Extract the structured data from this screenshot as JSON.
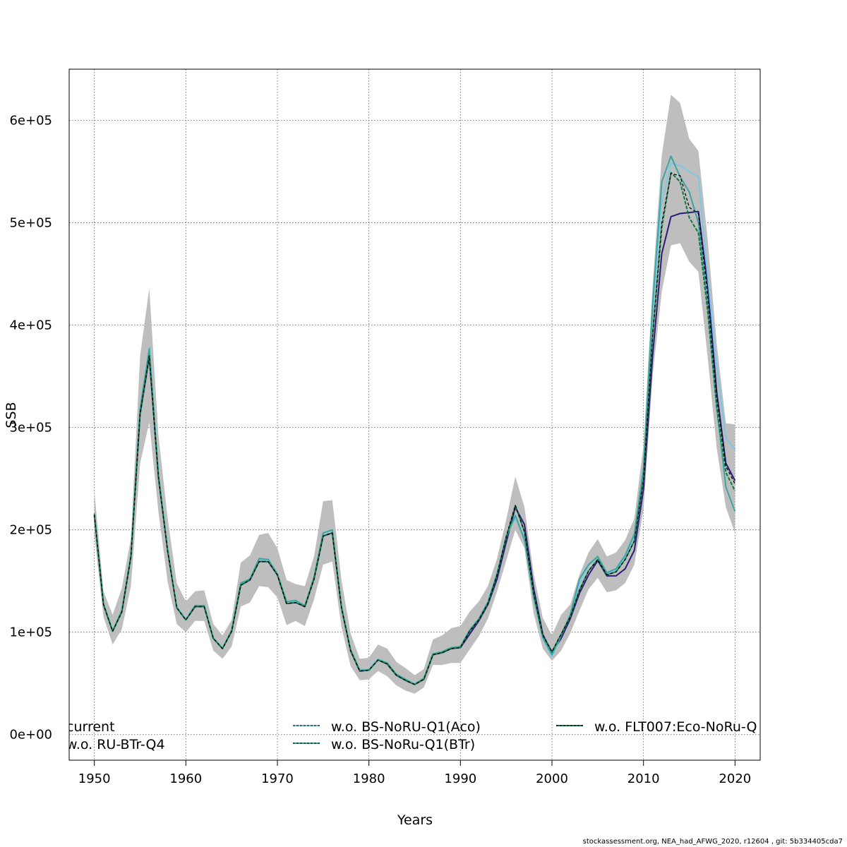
{
  "chart_data": {
    "type": "line",
    "xlabel": "Years",
    "ylabel": "SSB",
    "xlim": [
      1947.3,
      1922.7
    ],
    "ylim": [
      -25000,
      650000
    ],
    "x_ticks": [
      1950,
      1960,
      1970,
      1980,
      1990,
      2000,
      2010,
      2020
    ],
    "x_tick_labels": [
      "1950",
      "1960",
      "1970",
      "1980",
      "1990",
      "2000",
      "2010",
      "2020"
    ],
    "y_ticks": [
      0,
      100000,
      200000,
      300000,
      400000,
      500000,
      600000
    ],
    "y_tick_labels": [
      "0e+00",
      "1e+05",
      "2e+05",
      "3e+05",
      "4e+05",
      "5e+05",
      "6e+05"
    ],
    "grid": true,
    "legend_placement": "bottom",
    "confidence_band": {
      "color": "#bebebe",
      "x": [
        1950,
        1951,
        1952,
        1953,
        1954,
        1955,
        1956,
        1957,
        1958,
        1959,
        1960,
        1961,
        1962,
        1963,
        1964,
        1965,
        1966,
        1967,
        1968,
        1969,
        1970,
        1971,
        1972,
        1973,
        1974,
        1975,
        1976,
        1977,
        1978,
        1979,
        1980,
        1981,
        1982,
        1983,
        1984,
        1985,
        1986,
        1987,
        1988,
        1989,
        1990,
        1991,
        1992,
        1993,
        1994,
        1995,
        1996,
        1997,
        1998,
        1999,
        2000,
        2001,
        2002,
        2003,
        2004,
        2005,
        2006,
        2007,
        2008,
        2009,
        2010,
        2011,
        2012,
        2013,
        2014,
        2015,
        2016,
        2017,
        2018,
        2019,
        2020
      ],
      "lower": [
        195000,
        115000,
        88000,
        103000,
        145000,
        265000,
        305000,
        218000,
        150000,
        108000,
        100000,
        111000,
        111000,
        82000,
        74000,
        86000,
        125000,
        129000,
        145000,
        144000,
        134000,
        107000,
        111000,
        106000,
        132000,
        166000,
        169000,
        105000,
        67000,
        53000,
        54000,
        62000,
        57000,
        48000,
        43000,
        40000,
        46000,
        68000,
        68000,
        70000,
        70000,
        83000,
        96000,
        113000,
        140000,
        170000,
        200000,
        182000,
        118000,
        84000,
        72000,
        82000,
        99000,
        121000,
        142000,
        153000,
        139000,
        141000,
        148000,
        166000,
        220000,
        350000,
        433000,
        478000,
        480000,
        462000,
        452000,
        370000,
        280000,
        222000,
        197000
      ],
      "upper": [
        238000,
        140000,
        117000,
        143000,
        192000,
        370000,
        436000,
        293000,
        212000,
        148000,
        130000,
        140000,
        141000,
        108000,
        97000,
        112000,
        168000,
        175000,
        195000,
        197000,
        182000,
        151000,
        147000,
        145000,
        174000,
        228000,
        229000,
        151000,
        99000,
        74000,
        75000,
        88000,
        84000,
        71000,
        65000,
        58000,
        64000,
        93000,
        97000,
        104000,
        106000,
        120000,
        130000,
        145000,
        172000,
        210000,
        252000,
        222000,
        157000,
        114000,
        97000,
        117000,
        127000,
        156000,
        178000,
        191000,
        174000,
        178000,
        190000,
        211000,
        283000,
        438000,
        566000,
        625000,
        617000,
        582000,
        570000,
        485000,
        382000,
        304000,
        303000
      ]
    },
    "x": [
      1950,
      1951,
      1952,
      1953,
      1954,
      1955,
      1956,
      1957,
      1958,
      1959,
      1960,
      1961,
      1962,
      1963,
      1964,
      1965,
      1966,
      1967,
      1968,
      1969,
      1970,
      1971,
      1972,
      1973,
      1974,
      1975,
      1976,
      1977,
      1978,
      1979,
      1980,
      1981,
      1982,
      1983,
      1984,
      1985,
      1986,
      1987,
      1988,
      1989,
      1990,
      1991,
      1992,
      1993,
      1994,
      1995,
      1996,
      1997,
      1998,
      1999,
      2000,
      2001,
      2002,
      2003,
      2004,
      2005,
      2006,
      2007,
      2008,
      2009,
      2010,
      2011,
      2012,
      2013,
      2014,
      2015,
      2016,
      2017,
      2018,
      2019,
      2020
    ],
    "series": [
      {
        "name": "current",
        "color": "#000000",
        "dash": "4,3",
        "values": [
          215000,
          127000,
          101000,
          120000,
          174000,
          314000,
          370000,
          252000,
          180000,
          124000,
          112000,
          125000,
          125000,
          94000,
          84000,
          101000,
          146000,
          151000,
          169000,
          169000,
          156000,
          128000,
          129000,
          125000,
          152000,
          194000,
          197000,
          124000,
          82000,
          62000,
          63000,
          73000,
          69000,
          58000,
          53000,
          49000,
          54000,
          78000,
          80000,
          84000,
          85000,
          101000,
          112000,
          128000,
          156000,
          193000,
          224000,
          198000,
          138000,
          97000,
          81000,
          98000,
          115000,
          141000,
          160000,
          171000,
          156000,
          159000,
          171000,
          189000,
          250000,
          390000,
          500000,
          548000,
          546000,
          515000,
          509000,
          430000,
          330000,
          262000,
          245000
        ]
      },
      {
        "name": "w.o. RU-BTr-Q4",
        "color": "#2b1c7a",
        "dash": "",
        "values": [
          214000,
          127000,
          101000,
          120000,
          174000,
          313000,
          369000,
          252000,
          180000,
          124000,
          112000,
          125000,
          125000,
          94000,
          84000,
          101000,
          146000,
          151000,
          169000,
          169000,
          156000,
          128000,
          129000,
          125000,
          152000,
          194000,
          197000,
          124000,
          82000,
          62000,
          63000,
          73000,
          69000,
          58000,
          53000,
          49000,
          54000,
          78000,
          80000,
          84000,
          85000,
          98000,
          111000,
          127000,
          152000,
          188000,
          222000,
          205000,
          143000,
          98000,
          80000,
          94000,
          113000,
          138000,
          156000,
          170000,
          155000,
          155000,
          162000,
          180000,
          240000,
          370000,
          470000,
          506000,
          509000,
          510000,
          511000,
          440000,
          335000,
          265000,
          248000
        ]
      },
      {
        "name": "w.o. BS-NoRU-Q1(Aco)",
        "color": "#7ec8e3",
        "dash": "",
        "values": [
          215000,
          128000,
          102000,
          121000,
          176000,
          317000,
          378000,
          255000,
          182000,
          125000,
          113000,
          126000,
          126000,
          95000,
          85000,
          102000,
          147000,
          152000,
          171000,
          170000,
          157000,
          129000,
          130000,
          126000,
          153000,
          196000,
          200000,
          125000,
          83000,
          63000,
          64000,
          74000,
          70000,
          59000,
          54000,
          50000,
          55000,
          79000,
          81000,
          85000,
          86000,
          102000,
          113000,
          130000,
          158000,
          194000,
          212000,
          193000,
          134000,
          94000,
          76000,
          97000,
          116000,
          147000,
          166000,
          173000,
          157000,
          160000,
          173000,
          193000,
          255000,
          410000,
          520000,
          558000,
          556000,
          550000,
          545000,
          450000,
          360000,
          290000,
          278000
        ]
      },
      {
        "name": "w.o. BS-NoRu-Q1(BTr)",
        "color": "#3aa6a0",
        "dash": "",
        "values": [
          216000,
          128000,
          101000,
          121000,
          175000,
          318000,
          377000,
          254000,
          181000,
          124000,
          112000,
          126000,
          126000,
          94000,
          84000,
          102000,
          148000,
          152000,
          172000,
          171000,
          157000,
          130000,
          131000,
          126000,
          154000,
          197000,
          200000,
          125000,
          83000,
          63000,
          63000,
          73000,
          70000,
          59000,
          54000,
          49000,
          55000,
          79000,
          81000,
          85000,
          86000,
          102000,
          113000,
          129000,
          157000,
          193000,
          214000,
          190000,
          134000,
          95000,
          78000,
          97000,
          117000,
          152000,
          166000,
          174000,
          158000,
          162000,
          175000,
          196000,
          260000,
          420000,
          540000,
          565000,
          545000,
          530000,
          500000,
          420000,
          320000,
          242000,
          218000
        ]
      },
      {
        "name": "w.o. FLT007:Eco-NoRu-Q",
        "color": "#0d7a3e",
        "dash": "5,2",
        "values": [
          214000,
          127000,
          101000,
          120000,
          174000,
          314000,
          370000,
          252000,
          180000,
          124000,
          112000,
          125000,
          125000,
          94000,
          84000,
          101000,
          146000,
          151000,
          169000,
          169000,
          156000,
          128000,
          129000,
          125000,
          152000,
          194000,
          197000,
          124000,
          82000,
          62000,
          63000,
          73000,
          69000,
          58000,
          53000,
          49000,
          54000,
          78000,
          80000,
          84000,
          85000,
          101000,
          112000,
          128000,
          156000,
          193000,
          224000,
          198000,
          138000,
          97000,
          81000,
          98000,
          115000,
          141000,
          160000,
          171000,
          156000,
          159000,
          171000,
          189000,
          250000,
          390000,
          495000,
          549000,
          540000,
          505000,
          490000,
          415000,
          320000,
          256000,
          238000
        ]
      }
    ]
  },
  "footer_text": "stockassessment.org, NEA_had_AFWG_2020, r12604 , git: 5b334405cda7"
}
